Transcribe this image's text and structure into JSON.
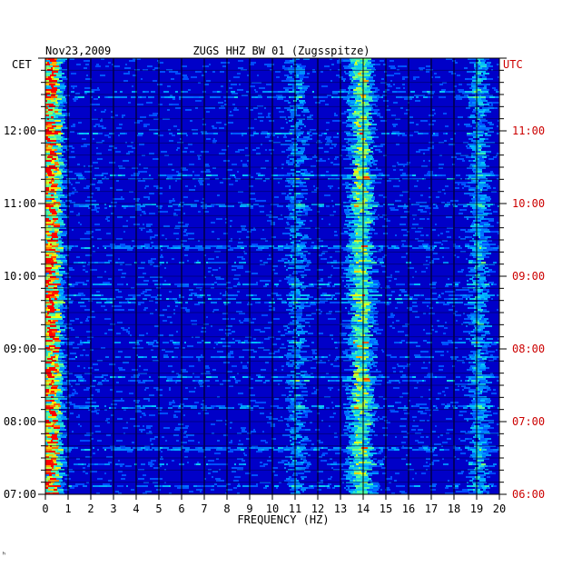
{
  "chart_data": {
    "type": "heatmap",
    "date": "Nov23,2009",
    "title": "ZUGS HHZ BW 01 (Zugsspitze)",
    "left_zone": "CET",
    "right_zone": "UTC",
    "xlabel": "FREQUENCY (HZ)",
    "x_ticks": [
      "0",
      "1",
      "2",
      "3",
      "4",
      "5",
      "6",
      "7",
      "8",
      "9",
      "10",
      "11",
      "12",
      "13",
      "14",
      "15",
      "16",
      "17",
      "18",
      "19",
      "20"
    ],
    "xlim": [
      0,
      20
    ],
    "y_ticks_left": [
      "07:00",
      "08:00",
      "09:00",
      "10:00",
      "11:00",
      "12:00"
    ],
    "y_ticks_right": [
      "06:00",
      "07:00",
      "08:00",
      "09:00",
      "10:00",
      "11:00"
    ],
    "ylim_left_hours": [
      7,
      13
    ],
    "grid": true,
    "colors": {
      "background": "#0000c8",
      "mid": "#00a0ff",
      "high": "#ffff00",
      "peak": "#ff0000",
      "grid": "#000000"
    },
    "hot_spots": [
      {
        "freq": 0.2,
        "intensity": 0.9
      },
      {
        "freq": 14.0,
        "intensity": 0.45
      },
      {
        "freq": 13.6,
        "intensity": 0.4
      },
      {
        "freq": 19.0,
        "intensity": 0.35
      },
      {
        "freq": 11.0,
        "intensity": 0.25
      }
    ]
  },
  "footer_mark": "ʰ"
}
